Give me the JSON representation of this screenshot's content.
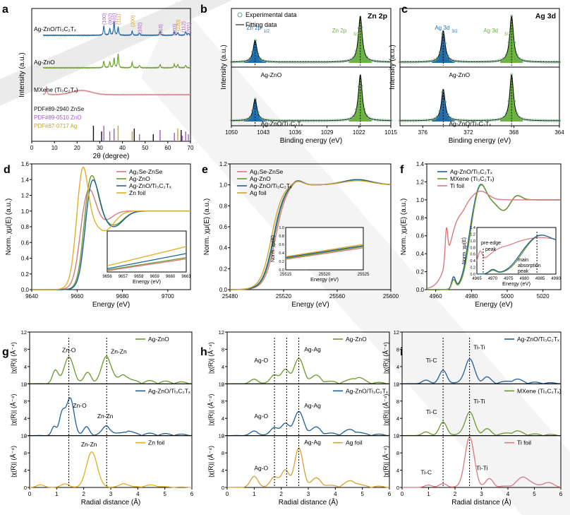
{
  "colors": {
    "agzno": "#6a9a2a",
    "agzno_ti": "#1f5f99",
    "mxene": "#d97a80",
    "zn": "#e0b020",
    "ag": "#d2a233",
    "ti": "#d97a80",
    "znse": "#d97a80",
    "fill_blue": "#1e6fb0",
    "fill_green": "#6db33f",
    "pdf_znse": "#111111",
    "pdf_zno": "#a657c9",
    "pdf_ag": "#c9a227"
  },
  "panels": {
    "a": {
      "letter": "a",
      "xlabel": "2θ (degree)",
      "ylabel": "Intensity (a.u.)"
    },
    "b": {
      "letter": "b",
      "title": "Zn 2p",
      "xlabel": "Binding energy (eV)",
      "ylabel": "Intensity (a.u.)",
      "legend_exp": "Experimental data",
      "legend_fit": "Fitting data"
    },
    "c": {
      "letter": "c",
      "title": "Ag 3d",
      "xlabel": "Binding energy (eV)",
      "ylabel": "Intensity (a.u.)"
    },
    "d": {
      "letter": "d",
      "xlabel": "Energy (eV)",
      "ylabel": "Norm. χμ(E) (a.u.)"
    },
    "e": {
      "letter": "e",
      "xlabel": "Energy (eV)",
      "ylabel": "Norm. χμ(E) (a.u.)"
    },
    "f": {
      "letter": "f",
      "xlabel": "Energy (eV)",
      "ylabel": "Norm. χμ(E) (a.u.)"
    },
    "g": {
      "letter": "g",
      "xlabel": "Radial distance (Å)",
      "ylabel": "|χ(R)| (Å⁻⁴)"
    },
    "h": {
      "letter": "h",
      "xlabel": "Radial distance (Å)",
      "ylabel": "|χ(R)| (Å⁻⁴)"
    },
    "i": {
      "letter": "i",
      "xlabel": "Radial distance (Å)",
      "ylabel": "|χ(R)| (Å⁻⁴)"
    }
  },
  "chart_data": [
    {
      "panel": "a",
      "type": "line",
      "xlim": [
        0,
        70
      ],
      "x_ticks": [
        "0",
        "10",
        "20",
        "30",
        "40",
        "50",
        "60",
        "70"
      ],
      "series": [
        {
          "name": "Ag-ZnO/Ti3C2Tx"
        },
        {
          "name": "Ag-ZnO"
        },
        {
          "name": "MXene (Ti3C2Tx)"
        }
      ],
      "references": [
        {
          "name": "PDF#89-2940 ZnSe",
          "peaks": [
            27.2,
            30.8,
            45.2,
            53.6,
            65.9,
            72.8
          ]
        },
        {
          "name": "PDF#89-0510 ZnO",
          "peaks": [
            31.8,
            34.4,
            36.3,
            47.5,
            56.6,
            62.9,
            66.4,
            67.9,
            69.1
          ]
        },
        {
          "name": "PDF#87-0717 Ag",
          "peaks": [
            38.1,
            44.3,
            64.4
          ]
        }
      ],
      "annotations": [
        "(100)",
        "(002)",
        "(101)",
        "(111)",
        "(200)",
        "(102)",
        "(110)",
        "(103)",
        "(220)",
        "(112)",
        "(201)"
      ]
    },
    {
      "panel": "b",
      "type": "line",
      "x_ticks": [
        "1050",
        "1043",
        "1036",
        "1029",
        "1022",
        "1015"
      ],
      "xlim": [
        1050,
        1015
      ],
      "peak_labels": [
        "Zn 2p",
        "1/2",
        "Zn 2p",
        "3/2"
      ],
      "peaks": [
        1044.8,
        1021.7
      ],
      "series": [
        {
          "name": "Ag-ZnO"
        },
        {
          "name": "Ag-ZnO/Ti3C2Tx"
        }
      ]
    },
    {
      "panel": "c",
      "type": "line",
      "x_ticks": [
        "376",
        "372",
        "368",
        "364"
      ],
      "xlim": [
        378,
        364
      ],
      "peak_labels": [
        "Ag 3d",
        "3/2",
        "Ag 3d",
        "5/2"
      ],
      "peaks": [
        374.2,
        368.2
      ],
      "series": [
        {
          "name": "Ag-ZnO"
        },
        {
          "name": "Ag-ZnO/Ti3C2Tx"
        }
      ]
    },
    {
      "panel": "d",
      "type": "line",
      "xlim": [
        9640,
        9710
      ],
      "ylim": [
        0,
        1.6
      ],
      "x_ticks": [
        "9640",
        "9660",
        "9680",
        "9700"
      ],
      "y_ticks": [
        "0.0",
        "0.2",
        "0.4",
        "0.6",
        "0.8",
        "1.0",
        "1.2",
        "1.4",
        "1.6"
      ],
      "series": [
        {
          "name": "Ag2Se-ZnSe"
        },
        {
          "name": "Ag-ZnO"
        },
        {
          "name": "Ag-ZnO/Ti3C2Tx"
        },
        {
          "name": "Zn foil"
        }
      ],
      "inset": {
        "xlabel": "Energy (eV)",
        "x_ticks": [
          "9656",
          "9657",
          "9658",
          "9659",
          "9660",
          "9661"
        ]
      }
    },
    {
      "panel": "e",
      "type": "line",
      "xlim": [
        25480,
        25600
      ],
      "ylim": [
        0,
        1.2
      ],
      "x_ticks": [
        "25480",
        "25520",
        "25560",
        "25600"
      ],
      "y_ticks": [
        "0.0",
        "0.2",
        "0.4",
        "0.6",
        "0.8",
        "1.0",
        "1.2"
      ],
      "series": [
        {
          "name": "Ag2Se-ZnSe"
        },
        {
          "name": "Ag-ZnO"
        },
        {
          "name": "Ag-ZnO/Ti3C2Tx"
        },
        {
          "name": "Ag foil"
        }
      ],
      "inset": {
        "xlabel": "Energy (eV)",
        "ylabel": "Norm. χμ(E)",
        "x_ticks": [
          "25515",
          "25520",
          "25525"
        ],
        "y_ticks": [
          "0.0",
          "0.2",
          "0.4",
          "0.6",
          "0.8",
          "1.0"
        ]
      }
    },
    {
      "panel": "f",
      "type": "line",
      "xlim": [
        4955,
        5030
      ],
      "ylim": [
        0,
        1.4
      ],
      "x_ticks": [
        "4960",
        "4980",
        "5000",
        "5020"
      ],
      "y_ticks": [
        "0.0",
        "0.2",
        "0.4",
        "0.6",
        "0.8",
        "1.0",
        "1.2",
        "1.4"
      ],
      "series": [
        {
          "name": "Ag-ZnO/Ti3C2Tx"
        },
        {
          "name": "MXene (Ti3C2Tx)"
        },
        {
          "name": "Ti foil"
        }
      ],
      "inset": {
        "xlabel": "Energy (eV)",
        "ylabel": "Norm. χμ(E)",
        "x_ticks": [
          "4965",
          "4970",
          "4975",
          "4980",
          "4985",
          "4990"
        ],
        "y_ticks": [
          "0.0",
          "0.2",
          "0.4",
          "0.6",
          "0.8",
          "1.0",
          "1.2",
          "1.4"
        ],
        "annotations": [
          "pre-edge",
          "peak",
          "main",
          "absorption",
          "peak"
        ]
      }
    },
    {
      "panel": "g",
      "type": "line",
      "xlim": [
        0,
        6
      ],
      "x_ticks": [
        "0",
        "1",
        "2",
        "3",
        "4",
        "5",
        "6"
      ],
      "y_ticks": [
        "0",
        "4",
        "8",
        "12"
      ],
      "subplots": [
        {
          "name": "Ag-ZnO",
          "ylim": [
            0,
            12
          ],
          "labels": [
            "Zn-O",
            "Zn-Zn"
          ]
        },
        {
          "name": "Ag-ZnO/Ti3C2Tx",
          "ylim": [
            0,
            12
          ],
          "labels": [
            "Zn-O",
            "Zn-Zn"
          ]
        },
        {
          "name": "Zn foil",
          "ylim": [
            0,
            12
          ],
          "labels": [
            "Zn-Zn"
          ]
        }
      ],
      "dashed_lines": [
        1.45,
        2.85
      ]
    },
    {
      "panel": "h",
      "type": "line",
      "xlim": [
        0,
        6
      ],
      "x_ticks": [
        "0",
        "1",
        "2",
        "3",
        "4",
        "5",
        "6"
      ],
      "y_ticks": [
        "0",
        "4",
        "8",
        "12"
      ],
      "subplots": [
        {
          "name": "Ag-ZnO",
          "ylim": [
            0,
            12
          ],
          "labels": [
            "Ag-O",
            "Ag-Ag"
          ]
        },
        {
          "name": "Ag-ZnO/Ti3C2Tx",
          "ylim": [
            0,
            12
          ],
          "labels": [
            "Ag-O",
            "Ag-Ag"
          ]
        },
        {
          "name": "Ag foil",
          "ylim": [
            0,
            12
          ],
          "labels": [
            "Ag-O",
            "Ag-Ag"
          ]
        }
      ],
      "dashed_lines": [
        1.75,
        2.2,
        2.65
      ]
    },
    {
      "panel": "i",
      "type": "line",
      "xlim": [
        0,
        6
      ],
      "x_ticks": [
        "0",
        "1",
        "2",
        "3",
        "4",
        "5",
        "6"
      ],
      "y_ticks": [
        "0",
        "4",
        "8",
        "12"
      ],
      "subplots": [
        {
          "name": "Ag-ZnO/Ti3C2Tx",
          "ylim": [
            0,
            12
          ],
          "labels": [
            "Ti-C",
            "Ti-Ti"
          ]
        },
        {
          "name": "MXene (Ti3C2Tx)",
          "ylim": [
            0,
            12
          ],
          "labels": [
            "Ti-C",
            "Ti-Ti"
          ]
        },
        {
          "name": "Ti foil",
          "ylim": [
            0,
            12
          ],
          "labels": [
            "Ti-C",
            "Ti-Ti"
          ]
        }
      ],
      "dashed_lines": [
        1.55,
        2.55
      ]
    }
  ]
}
